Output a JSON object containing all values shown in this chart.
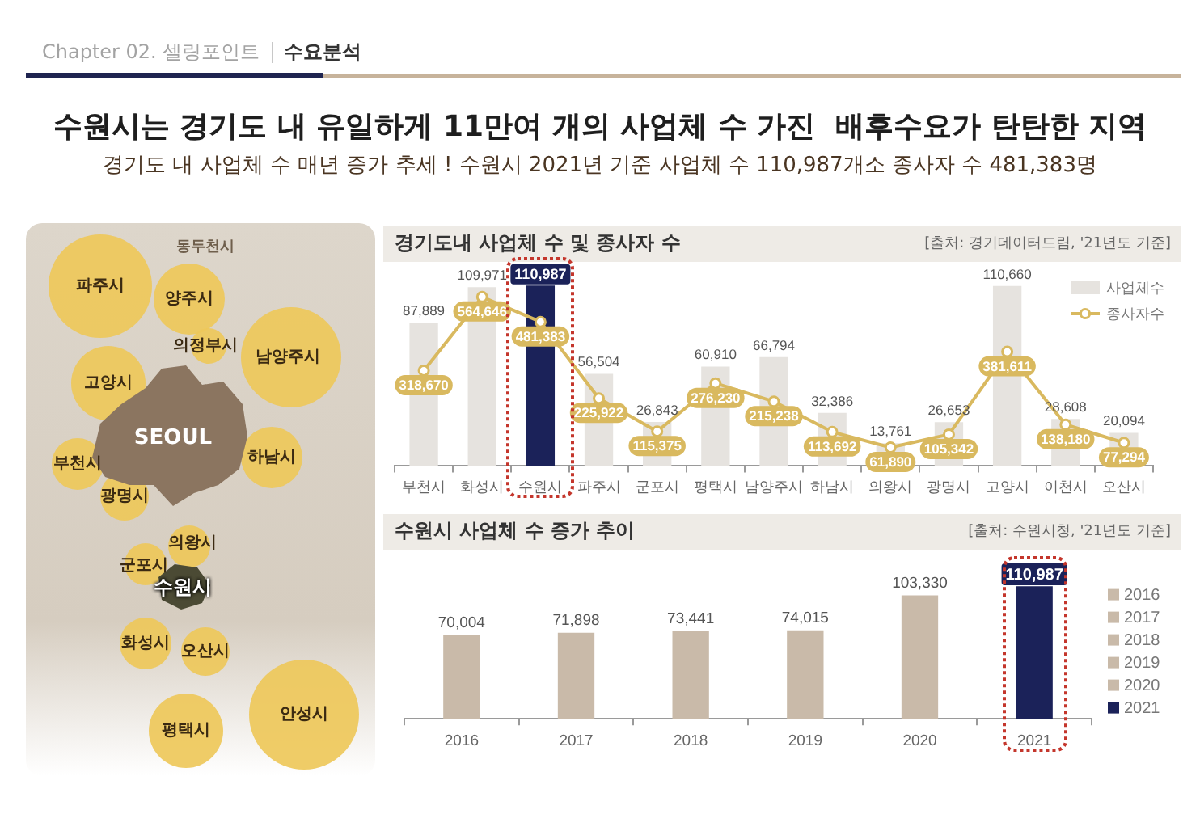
{
  "chart_data": [
    {
      "type": "other",
      "title": "수원시는 경기도 내 유일하게 11만여 개의 사업체 수 가진  배후수요가 탄탄한 지역",
      "subtitle": "경기도 내 사업체 수 매년 증가 추세 ! 수원시 2021년 기준 사업체 수 110,987개소 종사자 수 481,383명",
      "annotations": [
        "Chapter 02. 셀링포인트",
        "수요분석",
        "파주시",
        "동두천시",
        "양주시",
        "의정부시",
        "남양주시",
        "고양시",
        "SEOUL",
        "하남시",
        "부천시",
        "광명시",
        "의왕시",
        "군포시",
        "수원시",
        "화성시",
        "오산시",
        "평택시",
        "안성시"
      ]
    },
    {
      "type": "bar",
      "title": "경기도내 사업체 수 및 종사자 수",
      "annotations": [
        "[출처: 경기데이터드림, '21년도 기준]"
      ],
      "categories": [
        "부천시",
        "화성시",
        "수원시",
        "파주시",
        "군포시",
        "평택시",
        "남양주시",
        "하남시",
        "의왕시",
        "광명시",
        "고양시",
        "이천시",
        "오산시"
      ],
      "series": [
        {
          "name": "사업체수",
          "type": "bar",
          "color": "#e6e3df",
          "colors": [
            "#e6e3df",
            "#e6e3df",
            "#1b2259",
            "#e6e3df",
            "#e6e3df",
            "#e6e3df",
            "#e6e3df",
            "#e6e3df",
            "#e6e3df",
            "#e6e3df",
            "#e6e3df",
            "#e6e3df",
            "#e6e3df"
          ],
          "values": [
            87889,
            109971,
            110987,
            56504,
            26843,
            60910,
            66794,
            32386,
            13761,
            26653,
            110660,
            28608,
            20094
          ],
          "value_labels": [
            "87,889",
            "109,971",
            "110,987",
            "56,504",
            "26,843",
            "60,910",
            "66,794",
            "32,386",
            "13,761",
            "26,653",
            "110,660",
            "28,608",
            "20,094"
          ]
        },
        {
          "name": "종사자수",
          "type": "line",
          "axis": "y2",
          "color": "#d9b95f",
          "marker": "circle",
          "values": [
            318670,
            564646,
            481383,
            225922,
            115375,
            276230,
            215238,
            113692,
            61890,
            105342,
            381611,
            138180,
            77294
          ],
          "value_labels": [
            "318,670",
            "564,646",
            "481,383",
            "225,922",
            "115,375",
            "276,230",
            "215,238",
            "113,692",
            "61,890",
            "105,342",
            "381,611",
            "138,180",
            "77,294"
          ]
        }
      ],
      "tick_labels": "x",
      "legend": "top right"
    },
    {
      "type": "bar",
      "title": "수원시 사업체 수 증가 추이",
      "annotations": [
        "[출처: 수원시청, '21년도 기준]"
      ],
      "categories": [
        "2016",
        "2017",
        "2018",
        "2019",
        "2020",
        "2021"
      ],
      "stacked": true,
      "series": [
        {
          "name": "2016",
          "color": "#c9baa9",
          "values": [
            70004,
            null,
            null,
            null,
            null,
            null
          ],
          "value_labels": [
            "70,004",
            null,
            null,
            null,
            null,
            null
          ]
        },
        {
          "name": "2017",
          "color": "#c9baa9",
          "values": [
            null,
            71898,
            null,
            null,
            null,
            null
          ],
          "value_labels": [
            null,
            "71,898",
            null,
            null,
            null,
            null
          ]
        },
        {
          "name": "2018",
          "color": "#c9baa9",
          "values": [
            null,
            null,
            73441,
            null,
            null,
            null
          ],
          "value_labels": [
            null,
            null,
            "73,441",
            null,
            null,
            null
          ]
        },
        {
          "name": "2019",
          "color": "#c9baa9",
          "values": [
            null,
            null,
            null,
            74015,
            null,
            null
          ],
          "value_labels": [
            null,
            null,
            null,
            "74,015",
            null,
            null
          ]
        },
        {
          "name": "2020",
          "color": "#c9baa9",
          "values": [
            null,
            null,
            null,
            null,
            103330,
            null
          ],
          "value_labels": [
            null,
            null,
            null,
            null,
            "103,330",
            null
          ]
        },
        {
          "name": "2021",
          "color": "#1b2259",
          "values": [
            null,
            null,
            null,
            null,
            null,
            110987
          ],
          "value_labels": [
            null,
            null,
            null,
            null,
            null,
            "110,987"
          ]
        }
      ],
      "tick_labels": "x",
      "legend": "right"
    }
  ]
}
